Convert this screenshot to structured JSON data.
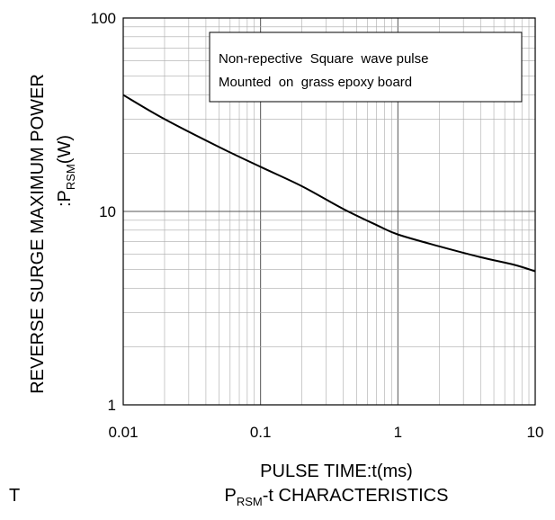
{
  "chart_data": {
    "type": "line",
    "xscale": "log",
    "yscale": "log",
    "xlim": [
      0.01,
      10
    ],
    "ylim": [
      1,
      100
    ],
    "grid": true,
    "x_ticks": [
      "0.01",
      "0.1",
      "1",
      "10"
    ],
    "y_ticks": [
      "1",
      "10",
      "100"
    ],
    "xlabel": "PULSE TIME:t(ms)",
    "ylabel": {
      "line1": "REVERSE SURGE MAXIMUM POWER",
      "prefix": ":P",
      "subscript": "RSM",
      "suffix": "(W)"
    },
    "annotation": {
      "line1": "Non-repective  Square  wave pulse",
      "line2": "Mounted  on  grass epoxy board"
    },
    "series": [
      {
        "color": "#000000",
        "points": [
          [
            0.01,
            40
          ],
          [
            0.02,
            30
          ],
          [
            0.05,
            21.5
          ],
          [
            0.1,
            17
          ],
          [
            0.2,
            13.5
          ],
          [
            0.4,
            10.3
          ],
          [
            0.7,
            8.5
          ],
          [
            1,
            7.6
          ],
          [
            2,
            6.6
          ],
          [
            4,
            5.8
          ],
          [
            7,
            5.3
          ],
          [
            10,
            4.9
          ]
        ]
      }
    ]
  },
  "footer": {
    "left_fragment": "T",
    "caption_prefix": "P",
    "caption_subscript": "RSM",
    "caption_suffix": "-t CHARACTERISTICS"
  }
}
